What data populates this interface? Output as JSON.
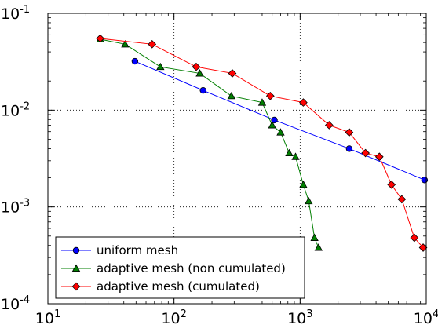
{
  "chart_data": {
    "type": "line",
    "xscale": "log",
    "yscale": "log",
    "xlim": [
      10,
      10000
    ],
    "ylim": [
      0.0001,
      0.1
    ],
    "grid": true,
    "legend_position": "lower-left",
    "x_ticks": [
      {
        "value": 10,
        "base": "10",
        "exp": "1"
      },
      {
        "value": 100,
        "base": "10",
        "exp": "2"
      },
      {
        "value": 1000,
        "base": "10",
        "exp": "3"
      },
      {
        "value": 10000,
        "base": "10",
        "exp": "4"
      }
    ],
    "y_ticks": [
      {
        "value": 0.0001,
        "base": "10",
        "exp": "-4"
      },
      {
        "value": 0.001,
        "base": "10",
        "exp": "-3"
      },
      {
        "value": 0.01,
        "base": "10",
        "exp": "-2"
      },
      {
        "value": 0.1,
        "base": "10",
        "exp": "-1"
      }
    ],
    "series": [
      {
        "name": "uniform mesh",
        "color": "#0000ff",
        "marker": "circle",
        "points": [
          [
            49,
            0.032
          ],
          [
            170,
            0.016
          ],
          [
            625,
            0.0079
          ],
          [
            2450,
            0.004
          ],
          [
            9700,
            0.0019
          ]
        ]
      },
      {
        "name": "adaptive mesh (non cumulated)",
        "color": "#007f00",
        "marker": "triangle",
        "points": [
          [
            26,
            0.054
          ],
          [
            41,
            0.048
          ],
          [
            78,
            0.028
          ],
          [
            160,
            0.024
          ],
          [
            285,
            0.014
          ],
          [
            500,
            0.012
          ],
          [
            600,
            0.007
          ],
          [
            700,
            0.0059
          ],
          [
            820,
            0.0036
          ],
          [
            920,
            0.0033
          ],
          [
            1060,
            0.0017
          ],
          [
            1170,
            0.00115
          ],
          [
            1300,
            0.00048
          ],
          [
            1400,
            0.00038
          ]
        ]
      },
      {
        "name": "adaptive mesh (cumulated)",
        "color": "#ff0000",
        "marker": "diamond",
        "points": [
          [
            26,
            0.055
          ],
          [
            67,
            0.048
          ],
          [
            150,
            0.028
          ],
          [
            290,
            0.024
          ],
          [
            580,
            0.014
          ],
          [
            1060,
            0.012
          ],
          [
            1700,
            0.007
          ],
          [
            2450,
            0.0059
          ],
          [
            3300,
            0.0036
          ],
          [
            4250,
            0.0033
          ],
          [
            5300,
            0.0017
          ],
          [
            6400,
            0.0012
          ],
          [
            8050,
            0.00048
          ],
          [
            9450,
            0.00038
          ]
        ]
      }
    ]
  }
}
